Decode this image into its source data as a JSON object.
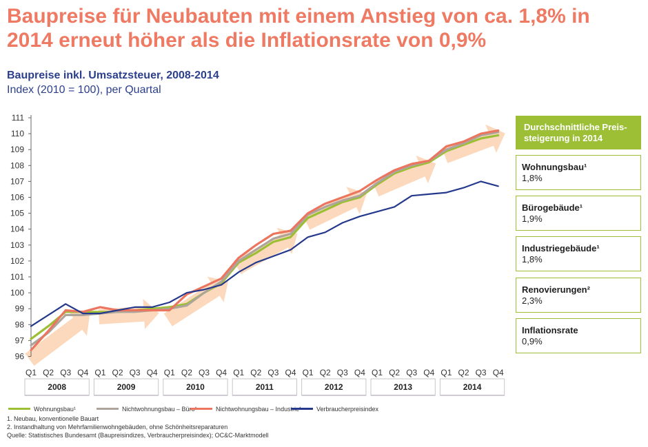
{
  "title": "Baupreise für Neubauten mit einem Anstieg von ca. 1,8% in 2014 erneut höher als die Inflationsrate von 0,9%",
  "subtitle": "Baupreise inkl. Umsatzsteuer, 2008-2014",
  "subtitle2": "Index (2010 = 100), per Quartal",
  "colors": {
    "title": "#ee7a63",
    "subtitle": "#2c3f8c",
    "wohnungsbau": "#9cbf36",
    "buero": "#ada59c",
    "industrie": "#ec7560",
    "vpi": "#24388c",
    "arrow": "#fbd2b0",
    "panel": "#9cbf36"
  },
  "chart_data": {
    "type": "line",
    "title": "Baupreise inkl. Umsatzsteuer, 2008-2014",
    "subtitle": "Index (2010 = 100), per Quartal",
    "xlabel": "",
    "ylabel": "",
    "ylim": [
      96,
      111
    ],
    "y_ticks": [
      96,
      97,
      98,
      99,
      100,
      101,
      102,
      103,
      104,
      105,
      106,
      107,
      108,
      109,
      110,
      111
    ],
    "grid": false,
    "legend_position": "bottom",
    "quarters": [
      "Q1",
      "Q2",
      "Q3",
      "Q4"
    ],
    "years": [
      "2008",
      "2009",
      "2010",
      "2011",
      "2012",
      "2013",
      "2014"
    ],
    "series": [
      {
        "name": "Wohnungsbau¹",
        "color": "#9cbf36",
        "values": [
          97.1,
          97.9,
          98.8,
          98.8,
          98.8,
          98.8,
          98.9,
          99.0,
          99.1,
          99.3,
          100.0,
          100.6,
          101.9,
          102.5,
          103.2,
          103.5,
          104.7,
          105.2,
          105.7,
          106.0,
          106.8,
          107.5,
          107.9,
          108.2,
          108.9,
          109.3,
          109.7,
          109.9
        ]
      },
      {
        "name": "Nichtwohnungsbau – Büro¹",
        "color": "#ada59c",
        "values": [
          96.7,
          97.5,
          98.6,
          98.6,
          98.7,
          98.8,
          98.8,
          98.9,
          99.0,
          99.2,
          100.0,
          100.7,
          102.0,
          102.7,
          103.4,
          103.7,
          104.9,
          105.4,
          105.8,
          106.1,
          106.9,
          107.6,
          108.0,
          108.3,
          109.0,
          109.4,
          109.9,
          110.1
        ]
      },
      {
        "name": "Nichtwohnungsbau – Industrie¹",
        "color": "#ec7560",
        "values": [
          96.4,
          97.6,
          98.9,
          98.8,
          99.1,
          98.9,
          98.9,
          98.9,
          98.9,
          99.9,
          100.4,
          100.9,
          102.2,
          103.0,
          103.7,
          103.9,
          105.0,
          105.6,
          106.0,
          106.4,
          107.1,
          107.7,
          108.1,
          108.3,
          109.2,
          109.5,
          110.0,
          110.2
        ]
      },
      {
        "name": "Verbraucherpreisindex",
        "color": "#24388c",
        "values": [
          97.9,
          98.6,
          99.3,
          98.7,
          98.7,
          98.9,
          99.1,
          99.1,
          99.4,
          100.0,
          100.2,
          100.5,
          101.3,
          101.9,
          102.3,
          102.7,
          103.5,
          103.8,
          104.4,
          104.8,
          105.1,
          105.4,
          106.1,
          106.2,
          106.3,
          106.6,
          107.0,
          106.7
        ]
      }
    ]
  },
  "panel": {
    "header": "Durchschnittliche Preis-steigerung in 2014",
    "header_line1": "Durchschnittliche Preis-",
    "header_line2": "steigerung in 2014",
    "items": [
      {
        "label": "Wohnungsbau¹",
        "value": "1,8%"
      },
      {
        "label": "Bürogebäude¹",
        "value": "1,9%"
      },
      {
        "label": "Industriegebäude¹",
        "value": "1,8%"
      },
      {
        "label": "Renovierungen²",
        "value": "2,3%"
      },
      {
        "label": "Inflationsrate",
        "value": "0,9%"
      }
    ]
  },
  "legend": [
    {
      "label": "Wohnungsbau¹",
      "color": "#9cbf36"
    },
    {
      "label": "Nichtwohnungsbau – Büro¹",
      "color": "#ada59c"
    },
    {
      "label": "Nichtwohnungsbau – Industrie¹",
      "color": "#ec7560"
    },
    {
      "label": "Verbraucherpreisindex",
      "color": "#24388c"
    }
  ],
  "footnotes": [
    "1.     Neubau, konventionelle Bauart",
    "2.     Instandhaltung von Mehrfamilienwohngebäuden, ohne Schönheitsreparaturen",
    "Quelle: Statistisches Bundesamt (Baupreisindizes, Verbraucherpreisindex); OC&C-Marktmodell"
  ]
}
